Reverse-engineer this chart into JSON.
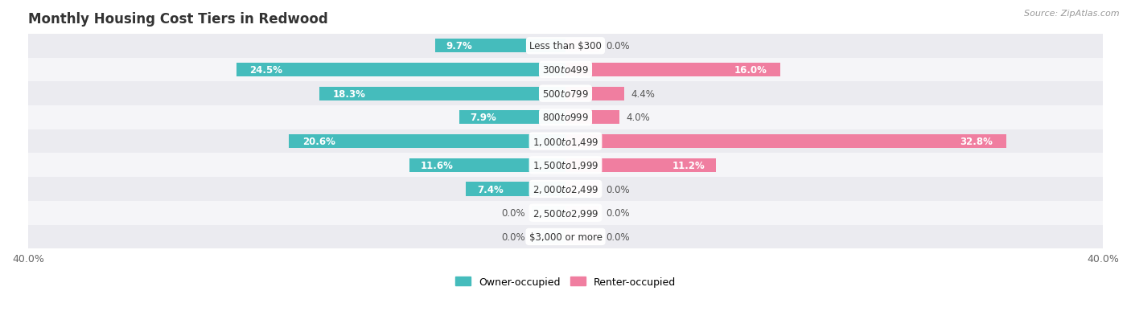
{
  "title": "Monthly Housing Cost Tiers in Redwood",
  "source": "Source: ZipAtlas.com",
  "categories": [
    "Less than $300",
    "$300 to $499",
    "$500 to $799",
    "$800 to $999",
    "$1,000 to $1,499",
    "$1,500 to $1,999",
    "$2,000 to $2,499",
    "$2,500 to $2,999",
    "$3,000 or more"
  ],
  "owner_values": [
    9.7,
    24.5,
    18.3,
    7.9,
    20.6,
    11.6,
    7.4,
    0.0,
    0.0
  ],
  "renter_values": [
    0.0,
    16.0,
    4.4,
    4.0,
    32.8,
    11.2,
    0.0,
    0.0,
    0.0
  ],
  "owner_color": "#45BCBC",
  "renter_color": "#F07EA0",
  "owner_color_zero": "#A8DCDC",
  "renter_color_zero": "#F8B8CE",
  "bg_even_color": "#EBEBF0",
  "bg_odd_color": "#F5F5F8",
  "axis_max": 40.0,
  "title_fontsize": 12,
  "label_fontsize": 8.5,
  "cat_fontsize": 8.5,
  "tick_fontsize": 9,
  "source_fontsize": 8,
  "zero_stub": 2.5
}
